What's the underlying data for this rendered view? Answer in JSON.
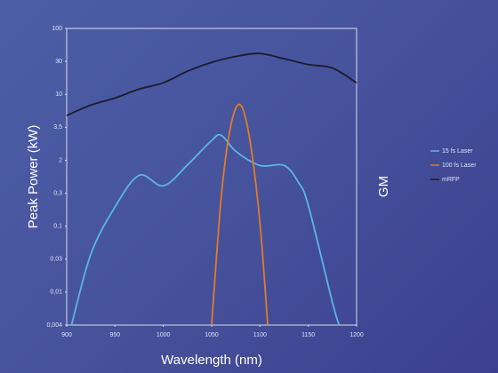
{
  "chart_data": {
    "type": "line",
    "y_label": "Peak Power (kW)",
    "y2_label": "GM",
    "x_label": "Wavelength (nm)",
    "log": true,
    "legend": "right",
    "xlim": [
      900,
      1200
    ],
    "xticks": [
      900,
      950,
      1000,
      1050,
      1100,
      1150,
      1200
    ],
    "ylim": [
      0.004,
      100
    ],
    "yticks": [
      {
        "value": 0.004,
        "label": "0,004"
      },
      {
        "value": 0.01,
        "label": "0,01"
      },
      {
        "value": 0.03,
        "label": "0,03"
      },
      {
        "value": 0.1,
        "label": "0,1"
      },
      {
        "value": 0.3,
        "label": "0,3"
      },
      2,
      {
        "value": 3.5,
        "label": "3,5"
      },
      10,
      30,
      100
    ],
    "series": [
      {
        "name": "15 fs Laser",
        "color": "#5cb6e6",
        "x": [
          905,
          925,
          950,
          975,
          1000,
          1025,
          1050,
          1060,
          1075,
          1100,
          1125,
          1140,
          1150,
          1175,
          1182
        ],
        "values": [
          0.004,
          0.036,
          0.19,
          0.84,
          0.46,
          1.53,
          2.8,
          3.05,
          2.33,
          1.48,
          1.48,
          0.55,
          0.2,
          0.0075,
          0.004
        ]
      },
      {
        "name": "100 fs Laser",
        "color": "#e07b2a",
        "x": [
          1050,
          1060,
          1070,
          1080,
          1090,
          1100,
          1108
        ],
        "values": [
          0.004,
          0.27,
          3.8,
          7.1,
          2.7,
          0.11,
          0.004
        ]
      },
      {
        "name": "mRFP",
        "color": "#1c1c2a",
        "x": [
          900,
          925,
          950,
          975,
          1000,
          1025,
          1050,
          1075,
          1100,
          1125,
          1150,
          1175,
          1200
        ],
        "values": [
          5.1,
          7.1,
          8.9,
          11.9,
          14.7,
          21.6,
          29,
          36,
          40,
          33,
          27,
          24,
          14.7
        ]
      }
    ]
  }
}
